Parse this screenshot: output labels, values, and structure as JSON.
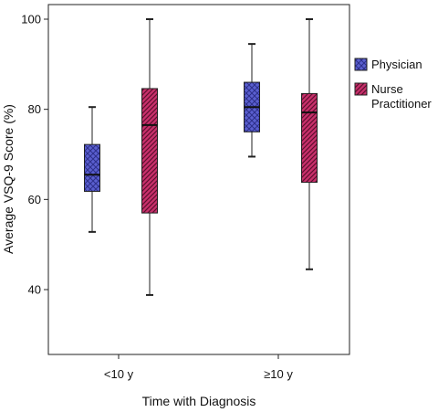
{
  "chart_data": {
    "type": "box",
    "xlabel": "Time with Diagnosis",
    "ylabel": "Average VSQ-9 Score (%)",
    "categories": [
      "<10 y",
      "≥10 y"
    ],
    "ylim": [
      20,
      102
    ],
    "yticks": [
      40,
      60,
      80,
      100
    ],
    "grid": false,
    "legend_position": "right",
    "series": [
      {
        "name": "Physician",
        "color": "#5a5fcf",
        "pattern": "crosshatch",
        "boxes": [
          {
            "min": 52.8,
            "q1": 61.8,
            "median": 65.5,
            "q3": 72.2,
            "max": 80.5
          },
          {
            "min": 69.5,
            "q1": 75.0,
            "median": 80.5,
            "q3": 86.0,
            "max": 94.5
          }
        ]
      },
      {
        "name": "Nurse Practitioner",
        "color": "#c8306b",
        "pattern": "diagonal",
        "boxes": [
          {
            "min": 38.8,
            "q1": 57.0,
            "median": 76.5,
            "q3": 84.6,
            "max": 100.0
          },
          {
            "min": 44.5,
            "q1": 63.8,
            "median": 79.3,
            "q3": 83.5,
            "max": 100.0
          }
        ]
      }
    ]
  }
}
